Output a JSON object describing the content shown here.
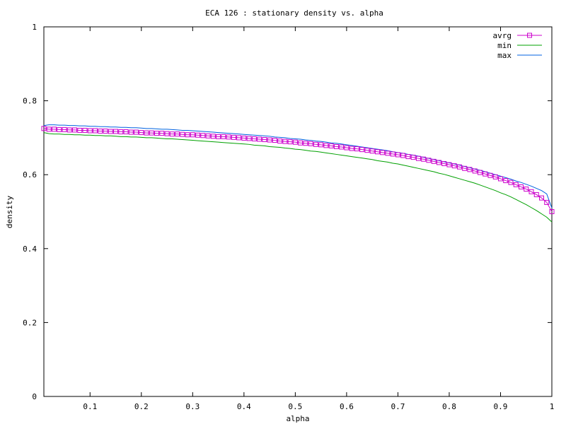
{
  "chart_data": {
    "type": "line",
    "title": "ECA 126 : stationary density vs. alpha",
    "xlabel": "alpha",
    "ylabel": "density",
    "xlim": [
      0.01,
      1.0
    ],
    "ylim": [
      0,
      1
    ],
    "xticks": [
      "0.1",
      "0.2",
      "0.3",
      "0.4",
      "0.5",
      "0.6",
      "0.7",
      "0.8",
      "0.9",
      "1"
    ],
    "xtick_values": [
      0.1,
      0.2,
      0.3,
      0.4,
      0.5,
      0.6,
      0.7,
      0.8,
      0.9,
      1.0
    ],
    "yticks": [
      "0",
      "0.2",
      "0.4",
      "0.6",
      "0.8",
      "1"
    ],
    "ytick_values": [
      0,
      0.2,
      0.4,
      0.6,
      0.8,
      1.0
    ],
    "grid": false,
    "legend_position": "top-right",
    "x": [
      0.01,
      0.02,
      0.03,
      0.04,
      0.05,
      0.06,
      0.07,
      0.08,
      0.09,
      0.1,
      0.11,
      0.12,
      0.13,
      0.14,
      0.15,
      0.16,
      0.17,
      0.18,
      0.19,
      0.2,
      0.21,
      0.22,
      0.23,
      0.24,
      0.25,
      0.26,
      0.27,
      0.28,
      0.29,
      0.3,
      0.31,
      0.32,
      0.33,
      0.34,
      0.35,
      0.36,
      0.37,
      0.38,
      0.39,
      0.4,
      0.41,
      0.42,
      0.43,
      0.44,
      0.45,
      0.46,
      0.47,
      0.48,
      0.49,
      0.5,
      0.51,
      0.52,
      0.53,
      0.54,
      0.55,
      0.56,
      0.57,
      0.58,
      0.59,
      0.6,
      0.61,
      0.62,
      0.63,
      0.64,
      0.65,
      0.66,
      0.67,
      0.68,
      0.69,
      0.7,
      0.71,
      0.72,
      0.73,
      0.74,
      0.75,
      0.76,
      0.77,
      0.78,
      0.79,
      0.8,
      0.81,
      0.82,
      0.83,
      0.84,
      0.85,
      0.86,
      0.87,
      0.88,
      0.89,
      0.9,
      0.91,
      0.92,
      0.93,
      0.94,
      0.95,
      0.96,
      0.97,
      0.98,
      0.99,
      1.0
    ],
    "series": [
      {
        "name": "avrg",
        "color": "#cc00cc",
        "marker": "square",
        "values": [
          0.725,
          0.723,
          0.723,
          0.722,
          0.722,
          0.721,
          0.721,
          0.72,
          0.72,
          0.719,
          0.719,
          0.718,
          0.718,
          0.717,
          0.717,
          0.716,
          0.716,
          0.715,
          0.715,
          0.714,
          0.713,
          0.713,
          0.712,
          0.712,
          0.711,
          0.71,
          0.71,
          0.709,
          0.708,
          0.708,
          0.707,
          0.706,
          0.705,
          0.704,
          0.703,
          0.703,
          0.702,
          0.701,
          0.7,
          0.699,
          0.698,
          0.697,
          0.696,
          0.695,
          0.694,
          0.693,
          0.691,
          0.69,
          0.689,
          0.688,
          0.686,
          0.685,
          0.684,
          0.682,
          0.681,
          0.679,
          0.678,
          0.676,
          0.675,
          0.673,
          0.671,
          0.67,
          0.668,
          0.666,
          0.664,
          0.662,
          0.66,
          0.658,
          0.656,
          0.654,
          0.652,
          0.649,
          0.647,
          0.644,
          0.642,
          0.639,
          0.636,
          0.633,
          0.63,
          0.627,
          0.624,
          0.621,
          0.617,
          0.614,
          0.61,
          0.606,
          0.602,
          0.598,
          0.594,
          0.589,
          0.584,
          0.579,
          0.573,
          0.567,
          0.561,
          0.554,
          0.546,
          0.537,
          0.525,
          0.5
        ]
      },
      {
        "name": "min",
        "color": "#00a000",
        "values": [
          0.714,
          0.711,
          0.71,
          0.71,
          0.709,
          0.709,
          0.708,
          0.708,
          0.707,
          0.707,
          0.706,
          0.706,
          0.705,
          0.705,
          0.704,
          0.703,
          0.703,
          0.702,
          0.702,
          0.701,
          0.7,
          0.7,
          0.699,
          0.698,
          0.697,
          0.697,
          0.696,
          0.695,
          0.694,
          0.693,
          0.692,
          0.691,
          0.69,
          0.689,
          0.688,
          0.687,
          0.686,
          0.685,
          0.684,
          0.683,
          0.682,
          0.68,
          0.679,
          0.678,
          0.676,
          0.675,
          0.674,
          0.672,
          0.671,
          0.669,
          0.668,
          0.666,
          0.664,
          0.663,
          0.661,
          0.659,
          0.657,
          0.655,
          0.653,
          0.651,
          0.649,
          0.647,
          0.645,
          0.643,
          0.641,
          0.638,
          0.636,
          0.634,
          0.631,
          0.629,
          0.626,
          0.623,
          0.62,
          0.617,
          0.614,
          0.611,
          0.608,
          0.604,
          0.601,
          0.597,
          0.593,
          0.589,
          0.585,
          0.581,
          0.577,
          0.572,
          0.567,
          0.562,
          0.557,
          0.551,
          0.546,
          0.54,
          0.533,
          0.526,
          0.519,
          0.511,
          0.503,
          0.494,
          0.485,
          0.472
        ]
      },
      {
        "name": "max",
        "color": "#0060e0",
        "values": [
          0.733,
          0.735,
          0.735,
          0.734,
          0.734,
          0.733,
          0.733,
          0.732,
          0.732,
          0.731,
          0.731,
          0.73,
          0.73,
          0.729,
          0.729,
          0.728,
          0.728,
          0.727,
          0.727,
          0.726,
          0.725,
          0.725,
          0.724,
          0.723,
          0.723,
          0.722,
          0.721,
          0.72,
          0.72,
          0.719,
          0.718,
          0.717,
          0.716,
          0.715,
          0.714,
          0.713,
          0.712,
          0.711,
          0.71,
          0.709,
          0.708,
          0.707,
          0.706,
          0.705,
          0.704,
          0.702,
          0.701,
          0.7,
          0.698,
          0.697,
          0.696,
          0.694,
          0.693,
          0.691,
          0.69,
          0.688,
          0.686,
          0.685,
          0.683,
          0.681,
          0.679,
          0.677,
          0.675,
          0.673,
          0.671,
          0.669,
          0.667,
          0.665,
          0.662,
          0.66,
          0.658,
          0.655,
          0.653,
          0.65,
          0.647,
          0.644,
          0.641,
          0.638,
          0.635,
          0.632,
          0.629,
          0.626,
          0.622,
          0.619,
          0.615,
          0.612,
          0.608,
          0.604,
          0.6,
          0.596,
          0.592,
          0.588,
          0.583,
          0.579,
          0.574,
          0.569,
          0.563,
          0.557,
          0.548,
          0.51
        ]
      }
    ]
  }
}
